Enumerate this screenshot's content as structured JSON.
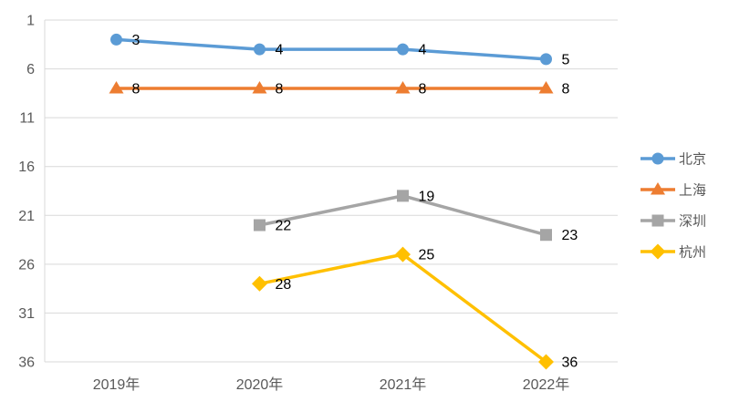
{
  "chart_data": {
    "type": "line",
    "title": "",
    "categories": [
      "2019年",
      "2020年",
      "2021年",
      "2022年"
    ],
    "series": [
      {
        "name": "北京",
        "color": "#5B9BD5",
        "marker": "circle",
        "values": [
          3,
          4,
          4,
          5
        ]
      },
      {
        "name": "上海",
        "color": "#ED7D31",
        "marker": "triangle",
        "values": [
          8,
          8,
          8,
          8
        ]
      },
      {
        "name": "深圳",
        "color": "#A5A5A5",
        "marker": "square",
        "values": [
          null,
          22,
          19,
          23
        ]
      },
      {
        "name": "杭州",
        "color": "#FFC000",
        "marker": "diamond",
        "values": [
          null,
          28,
          25,
          36
        ]
      }
    ],
    "y_axis": {
      "min": 1,
      "max": 36,
      "inverted": true,
      "ticks": [
        1,
        6,
        11,
        16,
        21,
        26,
        31,
        36
      ]
    },
    "x_axis": {
      "label": ""
    },
    "data_labels": true,
    "data_label_values": {
      "北京": [
        "3",
        "4",
        "4",
        "5"
      ],
      "上海": [
        "8",
        "8",
        "8",
        "8"
      ],
      "深圳": [
        "",
        "22",
        "19",
        "23"
      ],
      "杭州": [
        "",
        "28",
        "25",
        "36"
      ]
    },
    "legend_position": "right",
    "grid": true
  },
  "styles": {
    "background": "#FFFFFF",
    "grid_color": "#D9D9D9",
    "axis_line_color": "#D9D9D9",
    "axis_text_color": "#595959",
    "legend_text_color": "#595959",
    "data_label_color": "#000000"
  }
}
